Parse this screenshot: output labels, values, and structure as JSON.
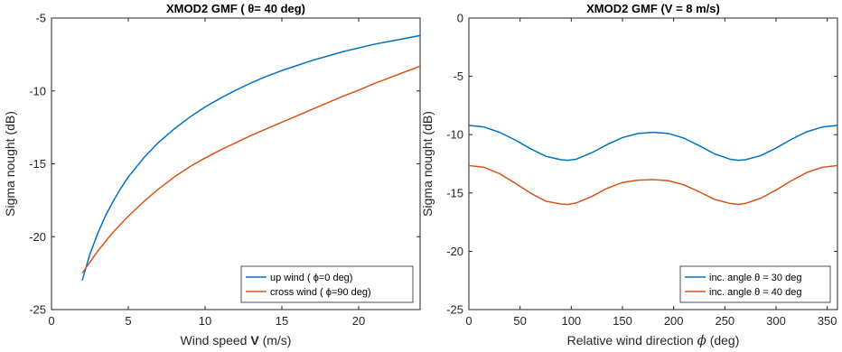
{
  "chart_data": [
    {
      "type": "line",
      "title": "XMOD2 GMF (    θ= 40 deg)",
      "xlabel": "Wind speed",
      "xlabel_symbol": "V",
      "xlabel_unit": "(m/s)",
      "ylabel": "Sigma nought (dB)",
      "xlim": [
        0,
        24
      ],
      "ylim": [
        -25,
        -5
      ],
      "xticks": [
        0,
        5,
        10,
        15,
        20
      ],
      "yticks": [
        -25,
        -20,
        -15,
        -10,
        -5
      ],
      "grid": false,
      "legend_position": "bottom-right",
      "series": [
        {
          "name": "up wind (   ϕ=0 deg)",
          "color": "#0072BD",
          "x": [
            2,
            2.5,
            3,
            3.5,
            4,
            4.5,
            5,
            6,
            7,
            8,
            9,
            10,
            11,
            12,
            13,
            14,
            15,
            16,
            17,
            18,
            19,
            20,
            21,
            22,
            23,
            24
          ],
          "y": [
            -23.0,
            -21.2,
            -19.8,
            -18.6,
            -17.6,
            -16.7,
            -15.9,
            -14.6,
            -13.5,
            -12.6,
            -11.8,
            -11.1,
            -10.5,
            -9.95,
            -9.45,
            -9.0,
            -8.6,
            -8.25,
            -7.9,
            -7.6,
            -7.3,
            -7.05,
            -6.8,
            -6.6,
            -6.4,
            -6.2
          ]
        },
        {
          "name": "cross wind (   ϕ=90 deg)",
          "color": "#D95319",
          "x": [
            2,
            3,
            4,
            5,
            6,
            7,
            8,
            9,
            10,
            11,
            12,
            13,
            14,
            15,
            16,
            17,
            18,
            19,
            20,
            21,
            22,
            23,
            24
          ],
          "y": [
            -22.5,
            -21.0,
            -19.7,
            -18.6,
            -17.6,
            -16.7,
            -15.9,
            -15.2,
            -14.6,
            -14.05,
            -13.55,
            -13.05,
            -12.6,
            -12.15,
            -11.7,
            -11.25,
            -10.8,
            -10.35,
            -9.95,
            -9.5,
            -9.1,
            -8.7,
            -8.3
          ]
        }
      ]
    },
    {
      "type": "line",
      "title": "XMOD2 GMF (V = 8 m/s)",
      "xlabel": "Relative wind direction",
      "xlabel_symbol": "ϕ",
      "xlabel_unit": "(deg)",
      "ylabel": "Sigma nought (dB)",
      "xlim": [
        0,
        360
      ],
      "ylim": [
        -25,
        0
      ],
      "xticks": [
        0,
        50,
        100,
        150,
        200,
        250,
        300,
        350
      ],
      "yticks": [
        -25,
        -20,
        -15,
        -10,
        -5,
        0
      ],
      "grid": false,
      "legend_position": "bottom-right",
      "series": [
        {
          "name": "inc. angle   θ = 30 deg",
          "color": "#0072BD",
          "x": [
            0,
            15,
            30,
            45,
            60,
            75,
            90,
            97,
            105,
            120,
            135,
            150,
            165,
            180,
            195,
            210,
            225,
            240,
            255,
            263,
            270,
            285,
            300,
            315,
            330,
            345,
            360
          ],
          "y": [
            -9.2,
            -9.35,
            -9.8,
            -10.45,
            -11.2,
            -11.85,
            -12.15,
            -12.2,
            -12.1,
            -11.55,
            -10.85,
            -10.25,
            -9.9,
            -9.8,
            -9.9,
            -10.3,
            -10.95,
            -11.65,
            -12.1,
            -12.2,
            -12.15,
            -11.8,
            -11.15,
            -10.4,
            -9.75,
            -9.35,
            -9.2
          ]
        },
        {
          "name": "inc. angle   θ = 40 deg",
          "color": "#D95319",
          "x": [
            0,
            15,
            30,
            45,
            60,
            75,
            90,
            97,
            105,
            120,
            135,
            150,
            165,
            180,
            195,
            210,
            225,
            240,
            255,
            263,
            270,
            285,
            300,
            315,
            330,
            345,
            360
          ],
          "y": [
            -12.65,
            -12.8,
            -13.35,
            -14.15,
            -15.0,
            -15.7,
            -15.95,
            -15.98,
            -15.85,
            -15.3,
            -14.6,
            -14.1,
            -13.9,
            -13.85,
            -13.95,
            -14.3,
            -14.9,
            -15.55,
            -15.9,
            -15.98,
            -15.9,
            -15.45,
            -14.75,
            -13.95,
            -13.25,
            -12.8,
            -12.65
          ]
        }
      ]
    }
  ]
}
